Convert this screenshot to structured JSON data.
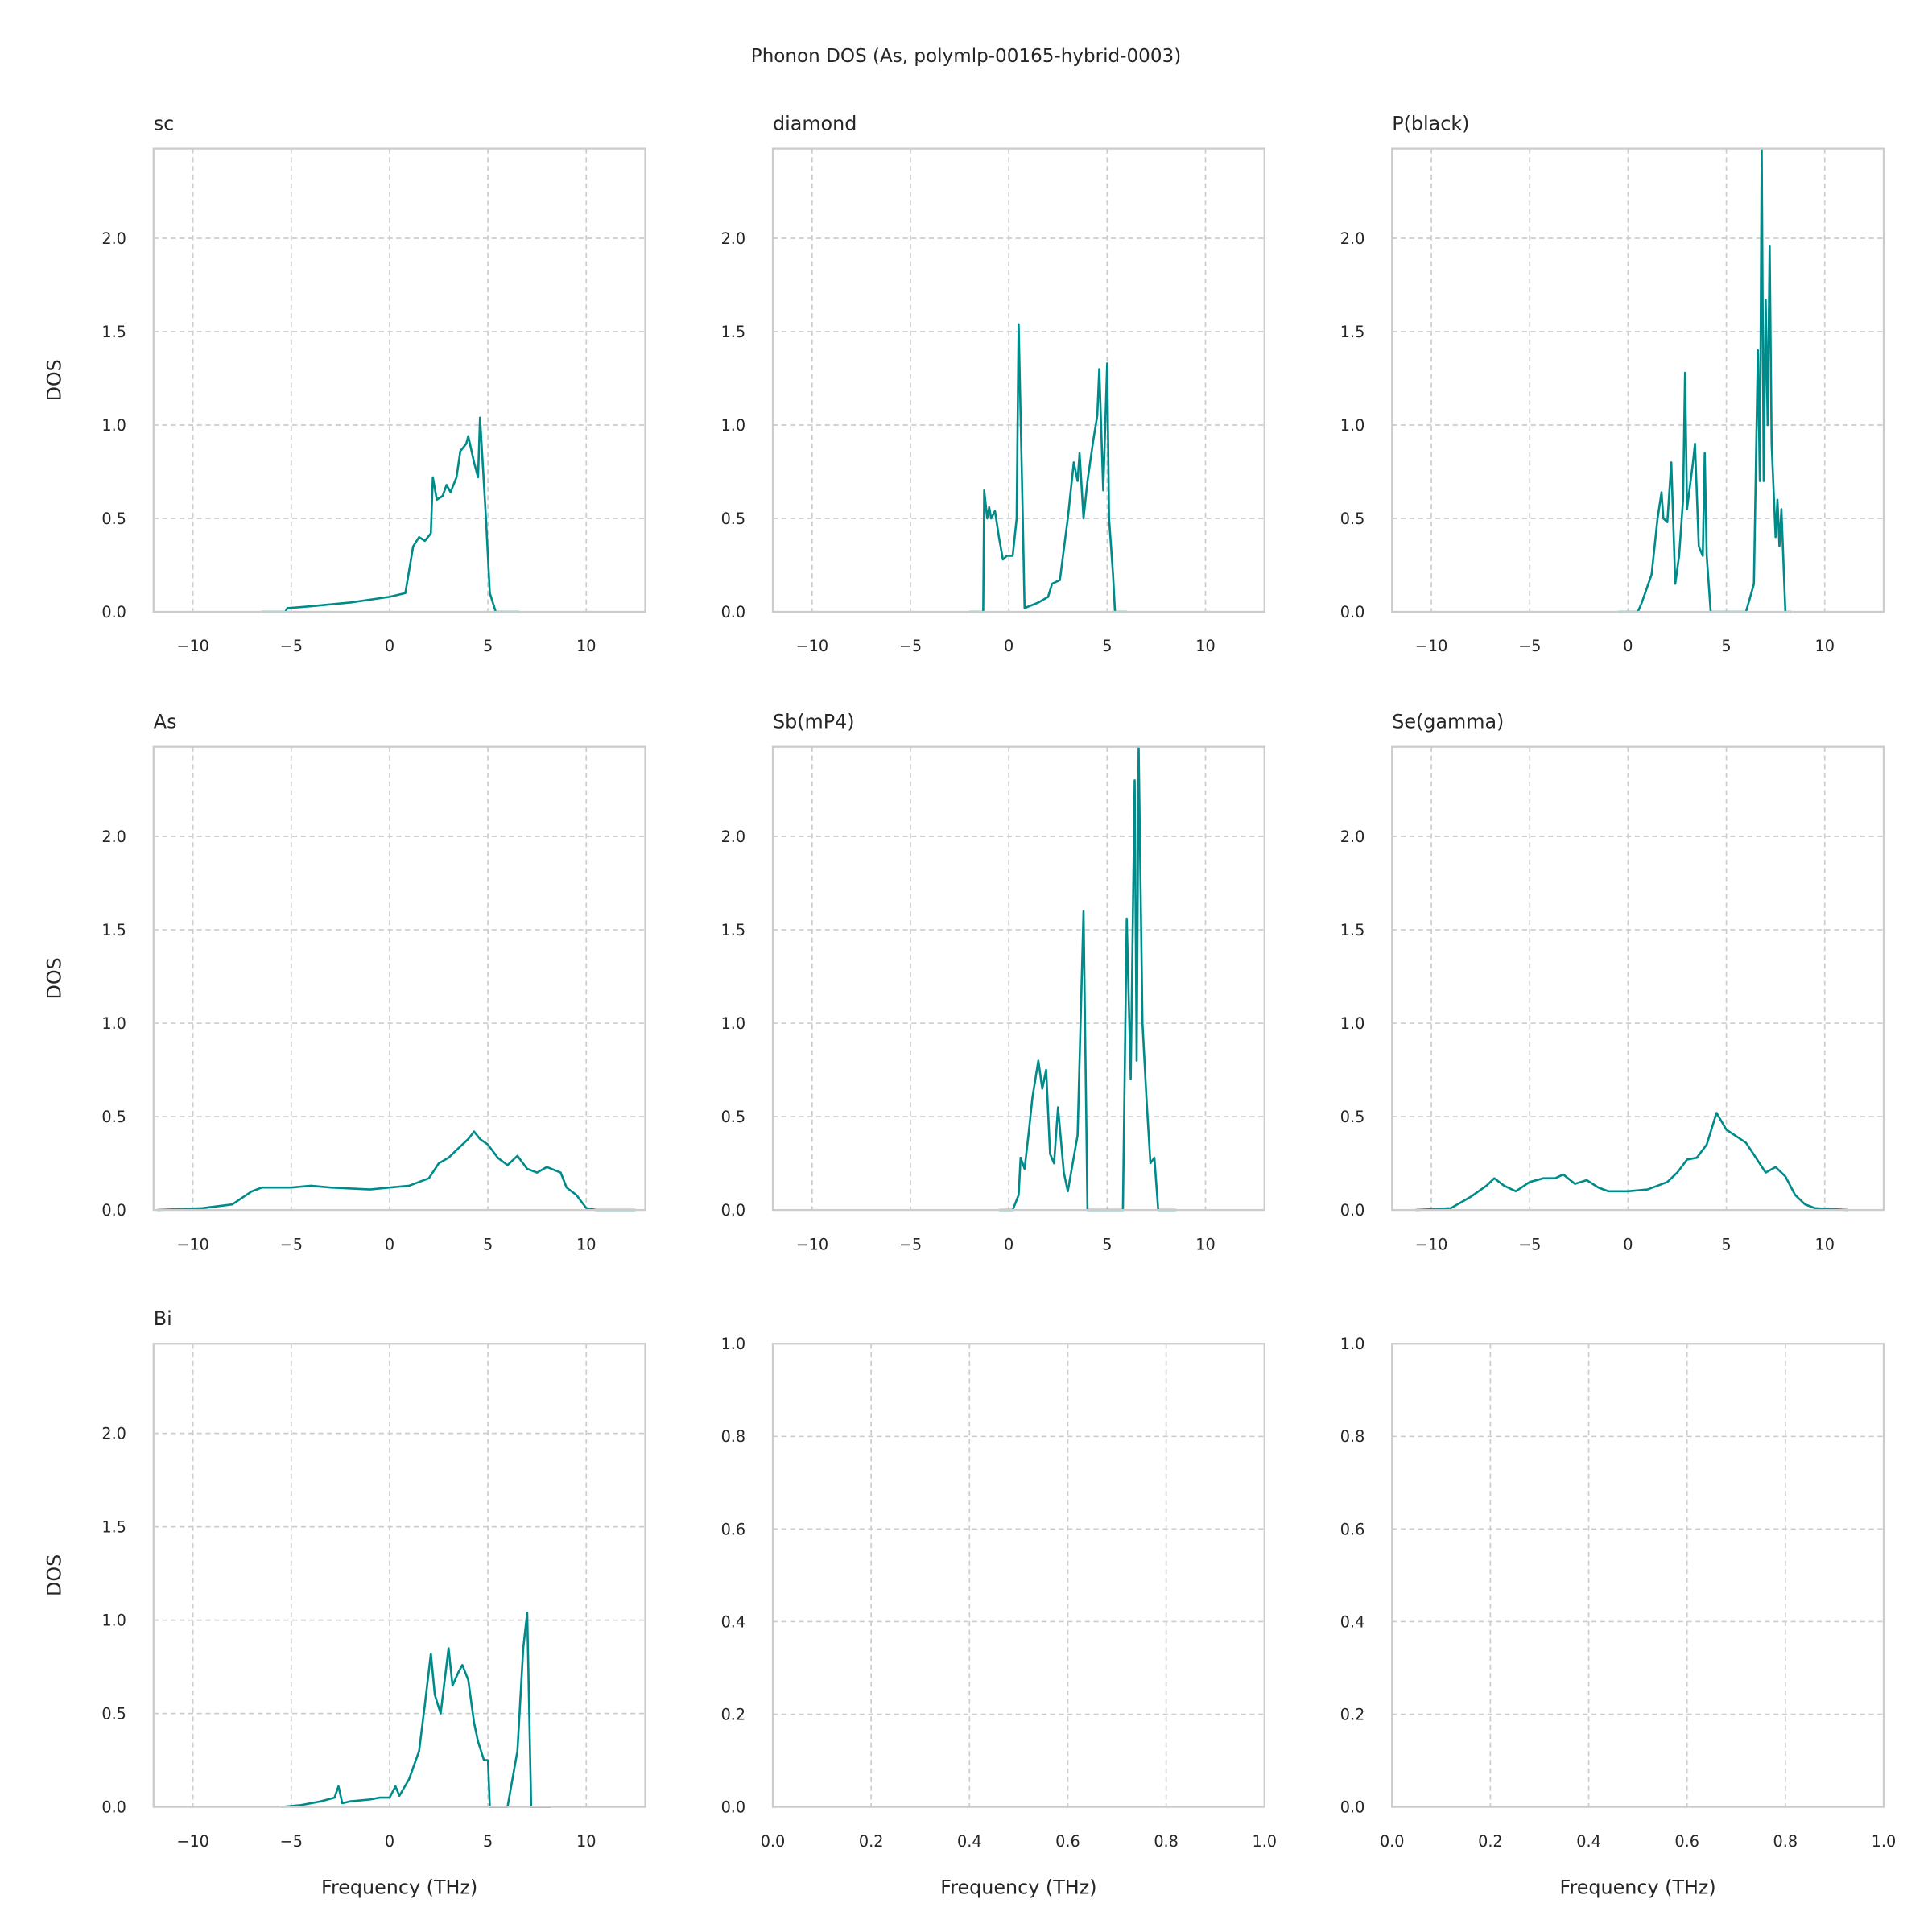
{
  "suptitle": "Phonon DOS (As, polymlp-00165-hybrid-0003)",
  "colors": {
    "line": "#008b8b",
    "grid": "#cccccc",
    "spine": "#cccccc",
    "text": "#262626"
  },
  "chart_data": [
    {
      "type": "line",
      "title": "sc",
      "xlabel": "",
      "ylabel": "DOS",
      "xlim": [
        -12,
        13
      ],
      "ylim": [
        0,
        2.48
      ],
      "xticks": [
        -10,
        -5,
        0,
        5,
        10
      ],
      "xticklabels": [
        "−10",
        "−5",
        "0",
        "5",
        "10"
      ],
      "yticks": [
        0,
        0.5,
        1,
        1.5,
        2
      ],
      "yticklabels": [
        "0.0",
        "0.5",
        "1.0",
        "1.5",
        "2.0"
      ],
      "grid": true,
      "x": [
        -6.5,
        -5.3,
        -5.2,
        -4,
        -2,
        0,
        0.8,
        1.2,
        1.5,
        1.8,
        2.1,
        2.2,
        2.4,
        2.7,
        2.9,
        3.1,
        3.4,
        3.6,
        3.9,
        4.0,
        4.3,
        4.5,
        4.6,
        4.9,
        5.1,
        5.4,
        6.6
      ],
      "y": [
        0,
        0,
        0.02,
        0.03,
        0.05,
        0.08,
        0.1,
        0.35,
        0.4,
        0.38,
        0.42,
        0.72,
        0.6,
        0.62,
        0.68,
        0.64,
        0.72,
        0.86,
        0.9,
        0.94,
        0.8,
        0.72,
        1.04,
        0.5,
        0.1,
        0,
        0
      ]
    },
    {
      "type": "line",
      "title": "diamond",
      "xlabel": "",
      "ylabel": "",
      "xlim": [
        -12,
        13
      ],
      "ylim": [
        0,
        2.48
      ],
      "xticks": [
        -10,
        -5,
        0,
        5,
        10
      ],
      "xticklabels": [
        "−10",
        "−5",
        "0",
        "5",
        "10"
      ],
      "yticks": [
        0,
        0.5,
        1,
        1.5,
        2
      ],
      "yticklabels": [
        "0.0",
        "0.5",
        "1.0",
        "1.5",
        "2.0"
      ],
      "grid": true,
      "x": [
        -2.0,
        -1.3,
        -1.25,
        -1.1,
        -1.0,
        -0.9,
        -0.7,
        -0.5,
        -0.3,
        -0.1,
        0.2,
        0.4,
        0.5,
        0.7,
        0.8,
        1.5,
        2.0,
        2.2,
        2.6,
        3.0,
        3.3,
        3.5,
        3.6,
        3.8,
        4.0,
        4.3,
        4.5,
        4.6,
        4.8,
        5.0,
        5.1,
        5.3,
        5.4,
        6.0
      ],
      "y": [
        0,
        0,
        0.65,
        0.5,
        0.56,
        0.5,
        0.54,
        0.4,
        0.28,
        0.3,
        0.3,
        0.5,
        1.54,
        0.55,
        0.02,
        0.05,
        0.08,
        0.15,
        0.17,
        0.5,
        0.8,
        0.7,
        0.85,
        0.5,
        0.7,
        0.92,
        1.05,
        1.3,
        0.65,
        1.33,
        0.5,
        0.2,
        0,
        0
      ]
    },
    {
      "type": "line",
      "title": "P(black)",
      "xlabel": "",
      "ylabel": "",
      "xlim": [
        -12,
        13
      ],
      "ylim": [
        0,
        2.48
      ],
      "xticks": [
        -10,
        -5,
        0,
        5,
        10
      ],
      "xticklabels": [
        "−10",
        "−5",
        "0",
        "5",
        "10"
      ],
      "yticks": [
        0,
        0.5,
        1,
        1.5,
        2
      ],
      "yticklabels": [
        "0.0",
        "0.5",
        "1.0",
        "1.5",
        "2.0"
      ],
      "grid": true,
      "x": [
        -0.5,
        0.5,
        0.7,
        1.2,
        1.5,
        1.7,
        1.8,
        2.0,
        2.2,
        2.4,
        2.6,
        2.8,
        2.9,
        3.0,
        3.3,
        3.4,
        3.6,
        3.8,
        3.9,
        4.0,
        4.2,
        6.0,
        6.4,
        6.6,
        6.7,
        6.8,
        6.9,
        7.0,
        7.1,
        7.2,
        7.3,
        7.5,
        7.6,
        7.7,
        7.8,
        8.0,
        8.3
      ],
      "y": [
        0,
        0,
        0.05,
        0.2,
        0.5,
        0.64,
        0.5,
        0.48,
        0.8,
        0.15,
        0.3,
        0.6,
        1.28,
        0.55,
        0.8,
        0.9,
        0.35,
        0.3,
        0.85,
        0.3,
        0,
        0,
        0.15,
        1.4,
        0.7,
        2.48,
        0.7,
        1.67,
        1.0,
        1.96,
        0.9,
        0.4,
        0.6,
        0.35,
        0.55,
        0,
        0
      ]
    },
    {
      "type": "line",
      "title": "As",
      "xlabel": "",
      "ylabel": "DOS",
      "xlim": [
        -12,
        13
      ],
      "ylim": [
        0,
        2.48
      ],
      "xticks": [
        -10,
        -5,
        0,
        5,
        10
      ],
      "xticklabels": [
        "−10",
        "−5",
        "0",
        "5",
        "10"
      ],
      "yticks": [
        0,
        0.5,
        1,
        1.5,
        2
      ],
      "yticklabels": [
        "0.0",
        "0.5",
        "1.0",
        "1.5",
        "2.0"
      ],
      "grid": true,
      "x": [
        -11.8,
        -9.5,
        -8,
        -7,
        -6.5,
        -5,
        -4,
        -3,
        -1,
        0,
        1,
        2,
        2.5,
        3,
        3.5,
        4,
        4.3,
        4.6,
        5,
        5.5,
        6,
        6.5,
        7,
        7.5,
        8,
        8.7,
        9,
        9.5,
        10,
        10.5,
        12.5
      ],
      "y": [
        0,
        0.01,
        0.03,
        0.1,
        0.12,
        0.12,
        0.13,
        0.12,
        0.11,
        0.12,
        0.13,
        0.17,
        0.25,
        0.28,
        0.33,
        0.38,
        0.42,
        0.38,
        0.35,
        0.28,
        0.24,
        0.29,
        0.22,
        0.2,
        0.23,
        0.2,
        0.12,
        0.08,
        0.01,
        0,
        0
      ]
    },
    {
      "type": "line",
      "title": "Sb(mP4)",
      "xlabel": "",
      "ylabel": "",
      "xlim": [
        -12,
        13
      ],
      "ylim": [
        0,
        2.48
      ],
      "xticks": [
        -10,
        -5,
        0,
        5,
        10
      ],
      "xticklabels": [
        "−10",
        "−5",
        "0",
        "5",
        "10"
      ],
      "yticks": [
        0,
        0.5,
        1,
        1.5,
        2
      ],
      "yticklabels": [
        "0.0",
        "0.5",
        "1.0",
        "1.5",
        "2.0"
      ],
      "grid": true,
      "x": [
        -0.5,
        0.2,
        0.5,
        0.6,
        0.8,
        1.0,
        1.2,
        1.5,
        1.7,
        1.9,
        2.1,
        2.3,
        2.5,
        2.8,
        3.0,
        3.5,
        3.8,
        4.0,
        5.8,
        6.0,
        6.2,
        6.4,
        6.5,
        6.6,
        6.8,
        7.0,
        7.2,
        7.4,
        7.6,
        8.5
      ],
      "y": [
        0,
        0,
        0.08,
        0.28,
        0.22,
        0.4,
        0.6,
        0.8,
        0.65,
        0.75,
        0.3,
        0.25,
        0.55,
        0.2,
        0.1,
        0.4,
        1.6,
        0,
        0,
        1.56,
        0.7,
        2.3,
        0.8,
        2.48,
        1.0,
        0.6,
        0.25,
        0.28,
        0,
        0
      ]
    },
    {
      "type": "line",
      "title": "Se(gamma)",
      "xlabel": "",
      "ylabel": "",
      "xlim": [
        -12,
        13
      ],
      "ylim": [
        0,
        2.48
      ],
      "xticks": [
        -10,
        -5,
        0,
        5,
        10
      ],
      "xticklabels": [
        "−10",
        "−5",
        "0",
        "5",
        "10"
      ],
      "yticks": [
        0,
        0.5,
        1,
        1.5,
        2
      ],
      "yticklabels": [
        "0.0",
        "0.5",
        "1.0",
        "1.5",
        "2.0"
      ],
      "grid": true,
      "x": [
        -10.8,
        -9,
        -8,
        -7.2,
        -6.8,
        -6.3,
        -5.7,
        -5,
        -4.3,
        -3.7,
        -3.3,
        -2.7,
        -2.1,
        -1.5,
        -1,
        0,
        1,
        2,
        2.5,
        3,
        3.5,
        4,
        4.5,
        5,
        6,
        6.5,
        7,
        7.5,
        8,
        8.5,
        9,
        9.5,
        11.2
      ],
      "y": [
        0,
        0.01,
        0.07,
        0.13,
        0.17,
        0.13,
        0.1,
        0.15,
        0.17,
        0.17,
        0.19,
        0.14,
        0.16,
        0.12,
        0.1,
        0.1,
        0.11,
        0.15,
        0.2,
        0.27,
        0.28,
        0.35,
        0.52,
        0.43,
        0.36,
        0.28,
        0.2,
        0.23,
        0.18,
        0.08,
        0.03,
        0.01,
        0
      ]
    },
    {
      "type": "line",
      "title": "Bi",
      "xlabel": "Frequency (THz)",
      "ylabel": "DOS",
      "xlim": [
        -12,
        13
      ],
      "ylim": [
        0,
        2.48
      ],
      "xticks": [
        -10,
        -5,
        0,
        5,
        10
      ],
      "xticklabels": [
        "−10",
        "−5",
        "0",
        "5",
        "10"
      ],
      "yticks": [
        0,
        0.5,
        1,
        1.5,
        2
      ],
      "yticklabels": [
        "0.0",
        "0.5",
        "1.0",
        "1.5",
        "2.0"
      ],
      "grid": true,
      "x": [
        -5.5,
        -4.5,
        -3.5,
        -2.8,
        -2.6,
        -2.4,
        -2,
        -1,
        -0.5,
        0,
        0.3,
        0.5,
        1,
        1.5,
        1.8,
        2.1,
        2.3,
        2.6,
        3.0,
        3.2,
        3.5,
        3.7,
        4.0,
        4.3,
        4.5,
        4.8,
        5.0,
        5.1,
        6.0,
        6.5,
        6.8,
        7.0,
        7.2,
        8.2
      ],
      "y": [
        0,
        0.01,
        0.03,
        0.05,
        0.11,
        0.02,
        0.03,
        0.04,
        0.05,
        0.05,
        0.11,
        0.06,
        0.15,
        0.3,
        0.55,
        0.82,
        0.6,
        0.5,
        0.85,
        0.65,
        0.72,
        0.76,
        0.68,
        0.45,
        0.35,
        0.25,
        0.25,
        0,
        0,
        0.3,
        0.85,
        1.04,
        0,
        0
      ]
    },
    {
      "type": "line",
      "title": "",
      "xlabel": "Frequency (THz)",
      "ylabel": "",
      "xlim": [
        0,
        1
      ],
      "ylim": [
        0,
        1
      ],
      "xticks": [
        0,
        0.2,
        0.4,
        0.6,
        0.8,
        1
      ],
      "xticklabels": [
        "0.0",
        "0.2",
        "0.4",
        "0.6",
        "0.8",
        "1.0"
      ],
      "yticks": [
        0,
        0.2,
        0.4,
        0.6,
        0.8,
        1
      ],
      "yticklabels": [
        "0.0",
        "0.2",
        "0.4",
        "0.6",
        "0.8",
        "1.0"
      ],
      "grid": true,
      "x": [],
      "y": []
    },
    {
      "type": "line",
      "title": "",
      "xlabel": "Frequency (THz)",
      "ylabel": "",
      "xlim": [
        0,
        1
      ],
      "ylim": [
        0,
        1
      ],
      "xticks": [
        0,
        0.2,
        0.4,
        0.6,
        0.8,
        1
      ],
      "xticklabels": [
        "0.0",
        "0.2",
        "0.4",
        "0.6",
        "0.8",
        "1.0"
      ],
      "yticks": [
        0,
        0.2,
        0.4,
        0.6,
        0.8,
        1
      ],
      "yticklabels": [
        "0.0",
        "0.2",
        "0.4",
        "0.6",
        "0.8",
        "1.0"
      ],
      "grid": true,
      "x": [],
      "y": []
    }
  ]
}
